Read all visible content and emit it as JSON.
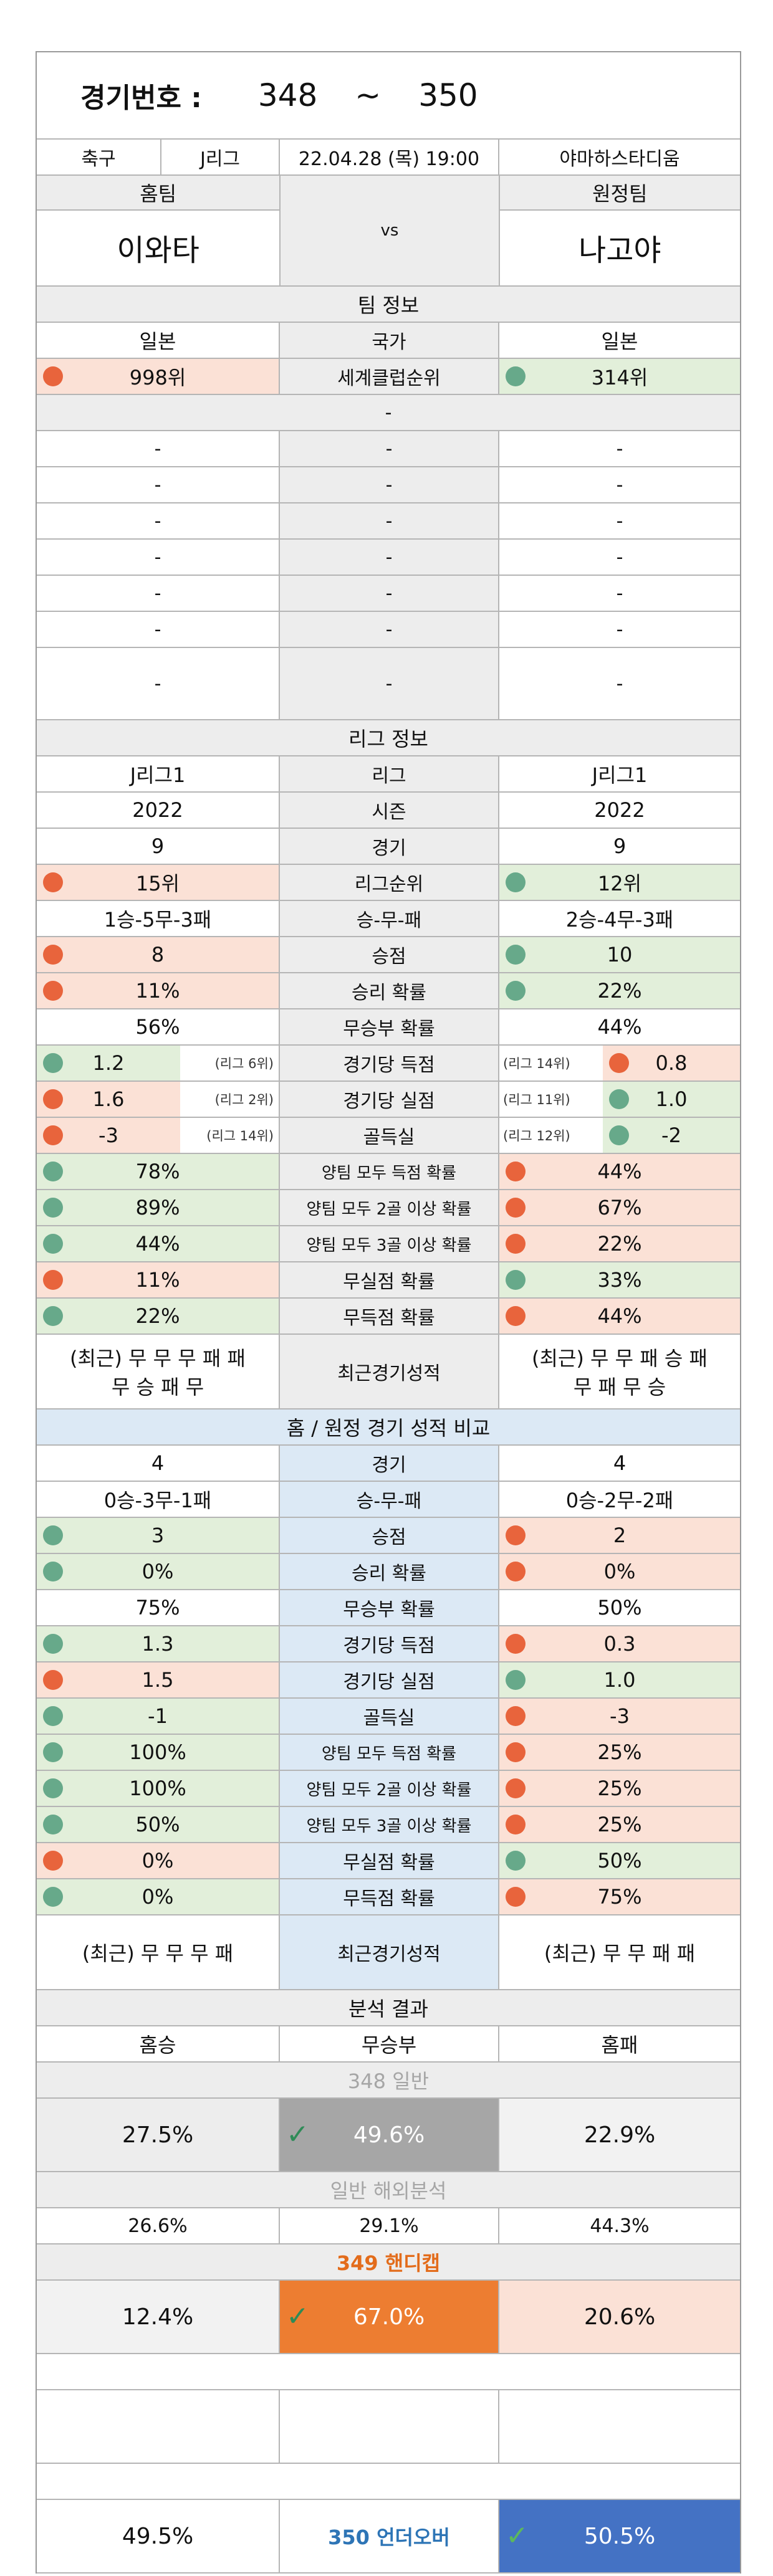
{
  "header": {
    "label": "경기번호 :",
    "from": "348",
    "tilde": "~",
    "to": "350"
  },
  "match": {
    "sport": "축구",
    "league": "J리그",
    "datetime": "22.04.28 (목) 19:00",
    "venue": "야마하스타디움"
  },
  "teams": {
    "home_label": "홈팀",
    "away_label": "원정팀",
    "home": "이와타",
    "away": "나고야",
    "vs": "vs"
  },
  "team_info": {
    "title": "팀 정보",
    "country": {
      "home": "일본",
      "label": "국가",
      "away": "일본"
    },
    "world_rank": {
      "home": "998위",
      "label": "세계클럽순위",
      "away": "314위"
    },
    "dash": "-",
    "blank_mark": "-"
  },
  "league_info": {
    "title": "리그 정보",
    "rows": [
      {
        "home": "J리그1",
        "label": "리그",
        "away": "J리그1"
      },
      {
        "home": "2022",
        "label": "시즌",
        "away": "2022"
      },
      {
        "home": "9",
        "label": "경기",
        "away": "9"
      },
      {
        "home": "15위",
        "label": "리그순위",
        "away": "12위"
      },
      {
        "home": "1승-5무-3패",
        "label": "승-무-패",
        "away": "2승-4무-3패"
      },
      {
        "home": "8",
        "label": "승점",
        "away": "10"
      },
      {
        "home": "11%",
        "label": "승리 확률",
        "away": "22%"
      },
      {
        "home": "56%",
        "label": "무승부 확률",
        "away": "44%"
      },
      {
        "home": "1.2",
        "home_note": "(리그 6위)",
        "label": "경기당 득점",
        "away_note": "(리그 14위)",
        "away": "0.8"
      },
      {
        "home": "1.6",
        "home_note": "(리그 2위)",
        "label": "경기당 실점",
        "away_note": "(리그 11위)",
        "away": "1.0"
      },
      {
        "home": "-3",
        "home_note": "(리그 14위)",
        "label": "골득실",
        "away_note": "(리그 12위)",
        "away": "-2"
      },
      {
        "home": "78%",
        "label": "양팀 모두 득점 확률",
        "away": "44%"
      },
      {
        "home": "89%",
        "label": "양팀 모두 2골 이상 확률",
        "away": "67%"
      },
      {
        "home": "44%",
        "label": "양팀 모두 3골 이상 확률",
        "away": "22%"
      },
      {
        "home": "11%",
        "label": "무실점 확률",
        "away": "33%"
      },
      {
        "home": "22%",
        "label": "무득점 확률",
        "away": "44%"
      }
    ],
    "recent": {
      "home_line1": "(최근) 무 무 무 패 패",
      "home_line2": "무 승 패 무",
      "label": "최근경기성적",
      "away_line1": "(최근) 무 무 패 승 패",
      "away_line2": "무 패 무 승"
    }
  },
  "home_away": {
    "title": "홈 / 원정 경기 성적 비교",
    "rows": [
      {
        "home": "4",
        "label": "경기",
        "away": "4"
      },
      {
        "home": "0승-3무-1패",
        "label": "승-무-패",
        "away": "0승-2무-2패"
      },
      {
        "home": "3",
        "label": "승점",
        "away": "2"
      },
      {
        "home": "0%",
        "label": "승리 확률",
        "away": "0%"
      },
      {
        "home": "75%",
        "label": "무승부 확률",
        "away": "50%"
      },
      {
        "home": "1.3",
        "label": "경기당 득점",
        "away": "0.3"
      },
      {
        "home": "1.5",
        "label": "경기당 실점",
        "away": "1.0"
      },
      {
        "home": "-1",
        "label": "골득실",
        "away": "-3"
      },
      {
        "home": "100%",
        "label": "양팀 모두 득점 확률",
        "away": "25%"
      },
      {
        "home": "100%",
        "label": "양팀 모두 2골 이상 확률",
        "away": "25%"
      },
      {
        "home": "50%",
        "label": "양팀 모두 3골 이상 확률",
        "away": "25%"
      },
      {
        "home": "0%",
        "label": "무실점 확률",
        "away": "50%"
      },
      {
        "home": "0%",
        "label": "무득점 확률",
        "away": "75%"
      }
    ],
    "recent": {
      "home": "(최근) 무 무 무 패",
      "label": "최근경기성적",
      "away": "(최근) 무 무 패 패"
    }
  },
  "analysis": {
    "title": "분석 결과",
    "headers": {
      "home": "홈승",
      "draw": "무승부",
      "away": "홈패"
    },
    "general": {
      "title": "348 일반",
      "home": "27.5%",
      "draw": "49.6%",
      "away": "22.9%"
    },
    "overseas": {
      "title": "일반 해외분석",
      "home": "26.6%",
      "draw": "29.1%",
      "away": "44.3%"
    },
    "handicap": {
      "title": "349 핸디캡",
      "home": "12.4%",
      "draw": "67.0%",
      "away": "20.6%"
    },
    "under_over": {
      "home": "49.5%",
      "label": "350 언더오버",
      "away": "50.5%"
    }
  },
  "colors": {
    "red_dot": "#e8643c",
    "green_dot": "#67a98a",
    "blue_highlight": "#4472c4",
    "orange_highlight": "#ed7d31",
    "gray_highlight": "#a6a6a6",
    "handicap_title": "#e36c1b",
    "under_over_label": "#2e75b6"
  }
}
